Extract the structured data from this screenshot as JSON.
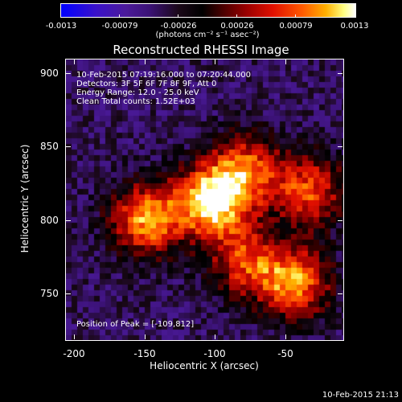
{
  "colorbar": {
    "ticks": [
      "-0.0013",
      "-0.00079",
      "-0.00026",
      "0.00026",
      "0.00079",
      "0.0013"
    ],
    "units": "(photons cm⁻² s⁻¹ asec⁻²)"
  },
  "title": "Reconstructed RHESSI Image",
  "annotations": {
    "time_range": "10-Feb-2015 07:19:16.000 to 07:20:44.000",
    "detectors": "Detectors: 3F 5F 6F 7F 8F 9F, Att 0",
    "energy_range": "Energy Range: 12.0 - 25.0 keV",
    "method": "Clean     Total counts: 1.52E+03",
    "peak": "Position of Peak = [-109,812]"
  },
  "axes": {
    "xlabel": "Heliocentric X (arcsec)",
    "ylabel": "Heliocentric Y (arcsec)",
    "xticks": [
      "-200",
      "-150",
      "-100",
      "-50"
    ],
    "yticks": [
      "900",
      "850",
      "800",
      "750"
    ]
  },
  "footer": "10-Feb-2015 21:13",
  "chart_data": {
    "type": "heatmap",
    "title": "Reconstructed RHESSI Image",
    "xlabel": "Heliocentric X (arcsec)",
    "ylabel": "Heliocentric Y (arcsec)",
    "xlim": [
      -212,
      -16
    ],
    "ylim": [
      715,
      912
    ],
    "colorscale_range": [
      -0.0013,
      0.0013
    ],
    "peak": [
      -109,
      812
    ],
    "sources": [
      {
        "x": -109,
        "y": 812,
        "value": 0.0013
      },
      {
        "x": -155,
        "y": 800,
        "value": 0.001
      },
      {
        "x": -85,
        "y": 835,
        "value": 0.0007
      },
      {
        "x": -50,
        "y": 755,
        "value": 0.0009
      },
      {
        "x": -40,
        "y": 820,
        "value": 0.0007
      },
      {
        "x": -85,
        "y": 770,
        "value": 0.0006
      }
    ]
  }
}
